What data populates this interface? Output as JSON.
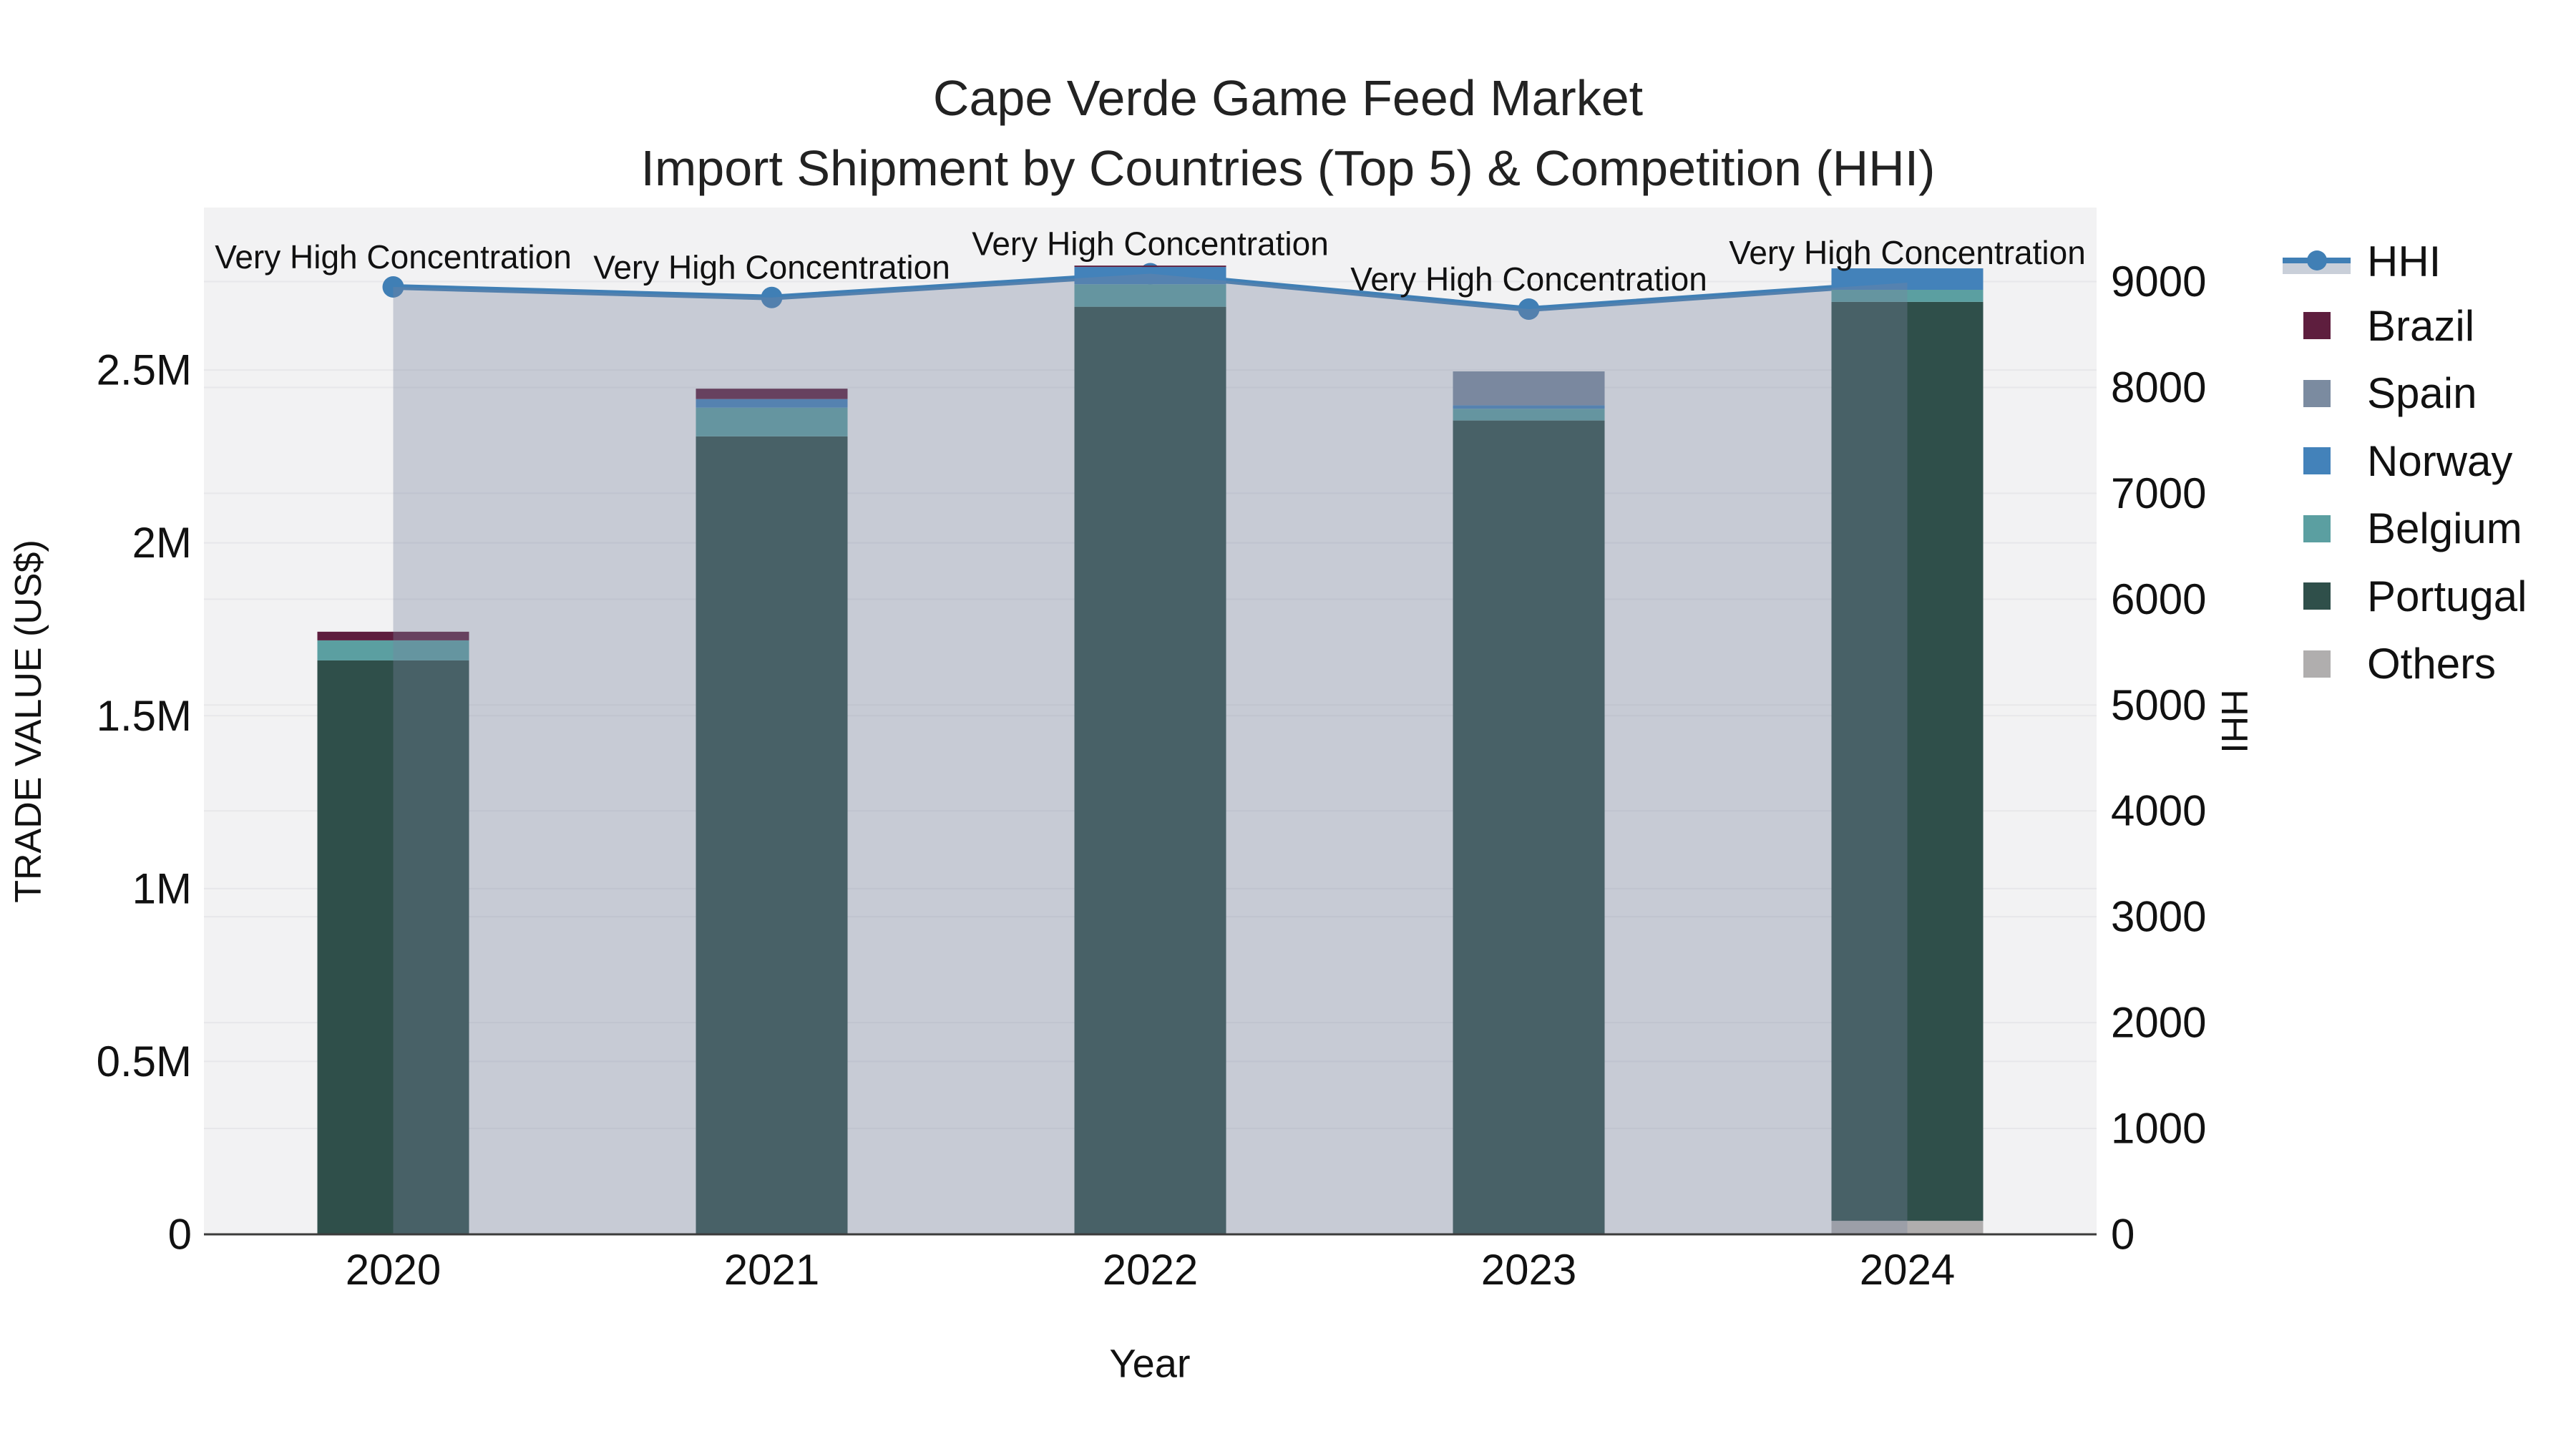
{
  "title": {
    "line1": "Cape Verde Game Feed Market",
    "line2": "Import Shipment by Countries (Top 5) & Competition (HHI)"
  },
  "axes": {
    "x": {
      "title": "Year"
    },
    "y_left": {
      "title": "TRADE VALUE (US$)",
      "ticks": [
        {
          "label": "0",
          "value": 0
        },
        {
          "label": "0.5M",
          "value": 500000
        },
        {
          "label": "1M",
          "value": 1000000
        },
        {
          "label": "1.5M",
          "value": 1500000
        },
        {
          "label": "2M",
          "value": 2000000
        },
        {
          "label": "2.5M",
          "value": 2500000
        }
      ]
    },
    "y_right": {
      "title": "HHI",
      "ticks": [
        {
          "label": "0",
          "value": 0
        },
        {
          "label": "1000",
          "value": 1000
        },
        {
          "label": "2000",
          "value": 2000
        },
        {
          "label": "3000",
          "value": 3000
        },
        {
          "label": "4000",
          "value": 4000
        },
        {
          "label": "5000",
          "value": 5000
        },
        {
          "label": "6000",
          "value": 6000
        },
        {
          "label": "7000",
          "value": 7000
        },
        {
          "label": "8000",
          "value": 8000
        },
        {
          "label": "9000",
          "value": 9000
        }
      ]
    }
  },
  "legend": {
    "items": [
      {
        "label": "HHI",
        "type": "line",
        "color": "#407FB5"
      },
      {
        "label": "Brazil",
        "type": "swatch",
        "color": "#5E1E3E"
      },
      {
        "label": "Spain",
        "type": "swatch",
        "color": "#7B8BA0"
      },
      {
        "label": "Norway",
        "type": "swatch",
        "color": "#4382BA"
      },
      {
        "label": "Belgium",
        "type": "swatch",
        "color": "#5B9FA1"
      },
      {
        "label": "Portugal",
        "type": "swatch",
        "color": "#2F4F4A"
      },
      {
        "label": "Others",
        "type": "swatch",
        "color": "#B0AEAE"
      }
    ]
  },
  "chart_data": {
    "type": "bar",
    "subtype": "stacked-bars-with-line-dual-axis",
    "title": "Cape Verde Game Feed Market — Import Shipment by Countries (Top 5) & Competition (HHI)",
    "xlabel": "Year",
    "ylabel_left": "TRADE VALUE (US$)",
    "ylabel_right": "HHI",
    "categories": [
      "2020",
      "2021",
      "2022",
      "2023",
      "2024"
    ],
    "series": [
      {
        "name": "Brazil",
        "type": "bar",
        "color": "#5E1E3E",
        "values": [
          25000,
          30000,
          4000,
          0,
          0
        ]
      },
      {
        "name": "Spain",
        "type": "bar",
        "color": "#7B8BA0",
        "values": [
          0,
          0,
          0,
          98000,
          0
        ]
      },
      {
        "name": "Norway",
        "type": "bar",
        "color": "#4382BA",
        "values": [
          0,
          25000,
          50000,
          10000,
          62000
        ]
      },
      {
        "name": "Belgium",
        "type": "bar",
        "color": "#5B9FA1",
        "values": [
          58000,
          83000,
          65000,
          34000,
          35000
        ]
      },
      {
        "name": "Portugal",
        "type": "bar",
        "color": "#2F4F4A",
        "values": [
          1660000,
          2308000,
          2683000,
          2354000,
          2658000
        ]
      },
      {
        "name": "Others",
        "type": "bar",
        "color": "#B0AEAE",
        "values": [
          0,
          0,
          0,
          0,
          39000
        ]
      }
    ],
    "bar_totals": [
      1743000,
      2446000,
      2802000,
      2496000,
      2794000
    ],
    "stack_order_bottom_to_top": [
      "Others",
      "Portugal",
      "Belgium",
      "Norway",
      "Spain",
      "Brazil"
    ],
    "line_series": {
      "name": "HHI",
      "axis": "right",
      "color": "#407FB5",
      "area_fill": "rgba(119,133,158,0.35)",
      "values": [
        8950,
        8850,
        9075,
        8740,
        8990
      ]
    },
    "annotations": [
      "Very High Concentration",
      "Very High Concentration",
      "Very High Concentration",
      "Very High Concentration",
      "Very High Concentration"
    ],
    "ylim_left": [
      0,
      2970000
    ],
    "ylim_right": [
      0,
      9700
    ],
    "grid": true,
    "legend_position": "right",
    "plot_background": "#f2f2f3"
  }
}
